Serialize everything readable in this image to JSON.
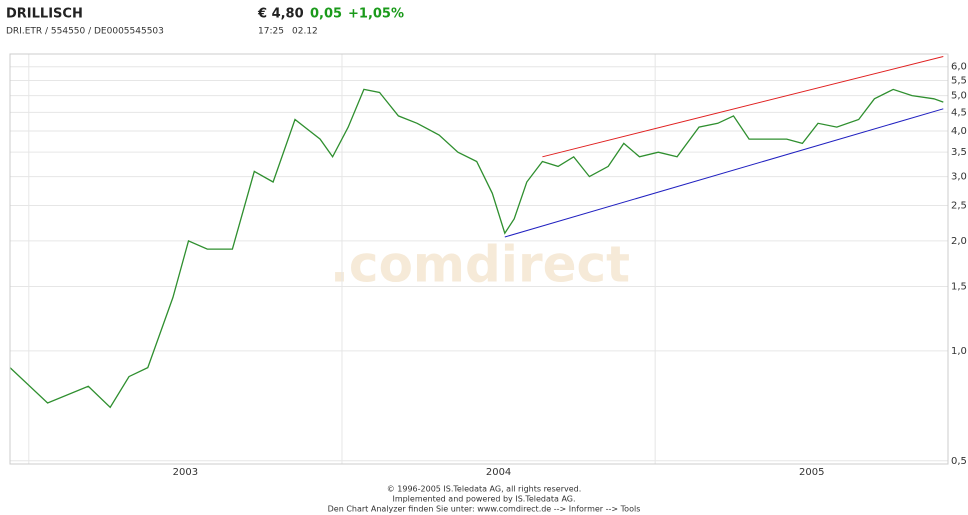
{
  "header": {
    "name": "DRILLISCH",
    "ids": "DRI.ETR / 554550 / DE0005545503",
    "price": "€ 4,80",
    "change": "0,05",
    "change_pct": "+1,05%",
    "time": "17:25",
    "date": "02.12"
  },
  "chart_data": {
    "type": "line",
    "log_y": true,
    "grid": true,
    "watermark": ".comdirect",
    "xlim": [
      2002.94,
      2005.935
    ],
    "xticks": [
      {
        "value": 2003.5,
        "label": "2003"
      },
      {
        "value": 2004.5,
        "label": "2004"
      },
      {
        "value": 2005.5,
        "label": "2005"
      }
    ],
    "xgrid": [
      2003,
      2004,
      2005
    ],
    "ylim": [
      0.49,
      6.5
    ],
    "yticks": [
      {
        "value": 0.5,
        "label": "0,5"
      },
      {
        "value": 1.0,
        "label": "1,0"
      },
      {
        "value": 1.5,
        "label": "1,5"
      },
      {
        "value": 2.0,
        "label": "2,0"
      },
      {
        "value": 2.5,
        "label": "2,5"
      },
      {
        "value": 3.0,
        "label": "3,0"
      },
      {
        "value": 3.5,
        "label": "3,5"
      },
      {
        "value": 4.0,
        "label": "4,0"
      },
      {
        "value": 4.5,
        "label": "4,5"
      },
      {
        "value": 5.0,
        "label": "5,0"
      },
      {
        "value": 5.5,
        "label": "5,5"
      },
      {
        "value": 6.0,
        "label": "6,0"
      }
    ],
    "series": [
      {
        "color": "#2f8f2f",
        "x": [
          2002.94,
          2003.06,
          2003.19,
          2003.26,
          2003.32,
          2003.38,
          2003.46,
          2003.51,
          2003.57,
          2003.65,
          2003.72,
          2003.78,
          2003.85,
          2003.93,
          2003.97,
          2004.02,
          2004.07,
          2004.12,
          2004.18,
          2004.24,
          2004.31,
          2004.37,
          2004.43,
          2004.48,
          2004.52,
          2004.55,
          2004.59,
          2004.64,
          2004.69,
          2004.74,
          2004.79,
          2004.85,
          2004.9,
          2004.95,
          2005.01,
          2005.07,
          2005.14,
          2005.2,
          2005.25,
          2005.3,
          2005.36,
          2005.42,
          2005.47,
          2005.52,
          2005.58,
          2005.65,
          2005.7,
          2005.76,
          2005.82,
          2005.89,
          2005.92
        ],
        "values": [
          0.9,
          0.72,
          0.8,
          0.7,
          0.85,
          0.9,
          1.4,
          2.0,
          1.9,
          1.9,
          3.1,
          2.9,
          4.3,
          3.8,
          3.4,
          4.1,
          5.2,
          5.1,
          4.4,
          4.2,
          3.9,
          3.5,
          3.3,
          2.7,
          2.1,
          2.3,
          2.9,
          3.3,
          3.2,
          3.4,
          3.0,
          3.2,
          3.7,
          3.4,
          3.5,
          3.4,
          4.1,
          4.2,
          4.4,
          3.8,
          3.8,
          3.8,
          3.7,
          4.2,
          4.1,
          4.3,
          4.9,
          5.2,
          5.0,
          4.9,
          4.8
        ]
      }
    ],
    "trendlines": [
      {
        "color": "#e02020",
        "x": [
          2004.64,
          2005.92
        ],
        "values": [
          3.4,
          6.4
        ]
      },
      {
        "color": "#2020c0",
        "x": [
          2004.52,
          2005.92
        ],
        "values": [
          2.05,
          4.6
        ]
      }
    ]
  },
  "footer": [
    "© 1996-2005 IS.Teledata AG, all rights reserved.",
    "Implemented and powered by IS.Teledata AG.",
    "Den Chart Analyzer finden Sie unter: www.comdirect.de --> Informer --> Tools"
  ]
}
